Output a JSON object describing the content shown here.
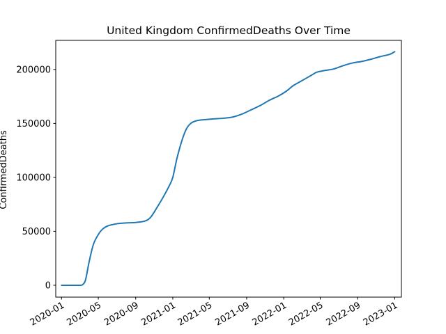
{
  "chart_data": {
    "type": "line",
    "title": "United Kingdom  ConfirmedDeaths Over Time",
    "xlabel": "",
    "ylabel": "ConfirmedDeaths",
    "x_range": [
      "2019-12-13",
      "2023-01-23"
    ],
    "y_range": [
      -11000,
      227000
    ],
    "grid": false,
    "legend": "none",
    "line_color": "#1f77b4",
    "x_ticks": [
      {
        "date": "2020-01-01",
        "label": "2020-01"
      },
      {
        "date": "2020-05-01",
        "label": "2020-05"
      },
      {
        "date": "2020-09-01",
        "label": "2020-09"
      },
      {
        "date": "2021-01-01",
        "label": "2021-01"
      },
      {
        "date": "2021-05-01",
        "label": "2021-05"
      },
      {
        "date": "2021-09-01",
        "label": "2021-09"
      },
      {
        "date": "2022-01-01",
        "label": "2022-01"
      },
      {
        "date": "2022-05-01",
        "label": "2022-05"
      },
      {
        "date": "2022-09-01",
        "label": "2022-09"
      },
      {
        "date": "2023-01-01",
        "label": "2023-01"
      }
    ],
    "y_ticks": [
      {
        "value": 0,
        "label": "0"
      },
      {
        "value": 50000,
        "label": "50000"
      },
      {
        "value": 100000,
        "label": "100000"
      },
      {
        "value": 150000,
        "label": "150000"
      },
      {
        "value": 200000,
        "label": "200000"
      }
    ],
    "series": [
      {
        "points": [
          [
            "2020-01-01",
            0
          ],
          [
            "2020-02-01",
            0
          ],
          [
            "2020-03-01",
            0
          ],
          [
            "2020-03-10",
            500
          ],
          [
            "2020-03-20",
            5000
          ],
          [
            "2020-04-01",
            22000
          ],
          [
            "2020-04-15",
            38000
          ],
          [
            "2020-05-01",
            47000
          ],
          [
            "2020-05-15",
            52000
          ],
          [
            "2020-06-01",
            55000
          ],
          [
            "2020-07-01",
            57000
          ],
          [
            "2020-08-01",
            57800
          ],
          [
            "2020-09-01",
            58200
          ],
          [
            "2020-10-01",
            59500
          ],
          [
            "2020-10-20",
            63000
          ],
          [
            "2020-11-10",
            72000
          ],
          [
            "2020-12-01",
            82000
          ],
          [
            "2020-12-20",
            92000
          ],
          [
            "2021-01-01",
            100000
          ],
          [
            "2021-01-15",
            118000
          ],
          [
            "2021-02-01",
            135000
          ],
          [
            "2021-02-15",
            145000
          ],
          [
            "2021-03-01",
            150000
          ],
          [
            "2021-03-20",
            152500
          ],
          [
            "2021-04-15",
            153500
          ],
          [
            "2021-05-15",
            154200
          ],
          [
            "2021-06-15",
            154800
          ],
          [
            "2021-07-15",
            155800
          ],
          [
            "2021-08-15",
            158500
          ],
          [
            "2021-09-15",
            162500
          ],
          [
            "2021-10-15",
            166500
          ],
          [
            "2021-11-15",
            171500
          ],
          [
            "2021-12-15",
            175500
          ],
          [
            "2022-01-10",
            180000
          ],
          [
            "2022-02-01",
            185000
          ],
          [
            "2022-03-01",
            189500
          ],
          [
            "2022-04-01",
            194500
          ],
          [
            "2022-04-20",
            197500
          ],
          [
            "2022-05-15",
            199000
          ],
          [
            "2022-06-15",
            200500
          ],
          [
            "2022-07-15",
            203500
          ],
          [
            "2022-08-15",
            206000
          ],
          [
            "2022-09-15",
            207500
          ],
          [
            "2022-10-15",
            209500
          ],
          [
            "2022-11-15",
            212000
          ],
          [
            "2022-12-15",
            214000
          ],
          [
            "2023-01-01",
            216500
          ]
        ]
      }
    ]
  }
}
